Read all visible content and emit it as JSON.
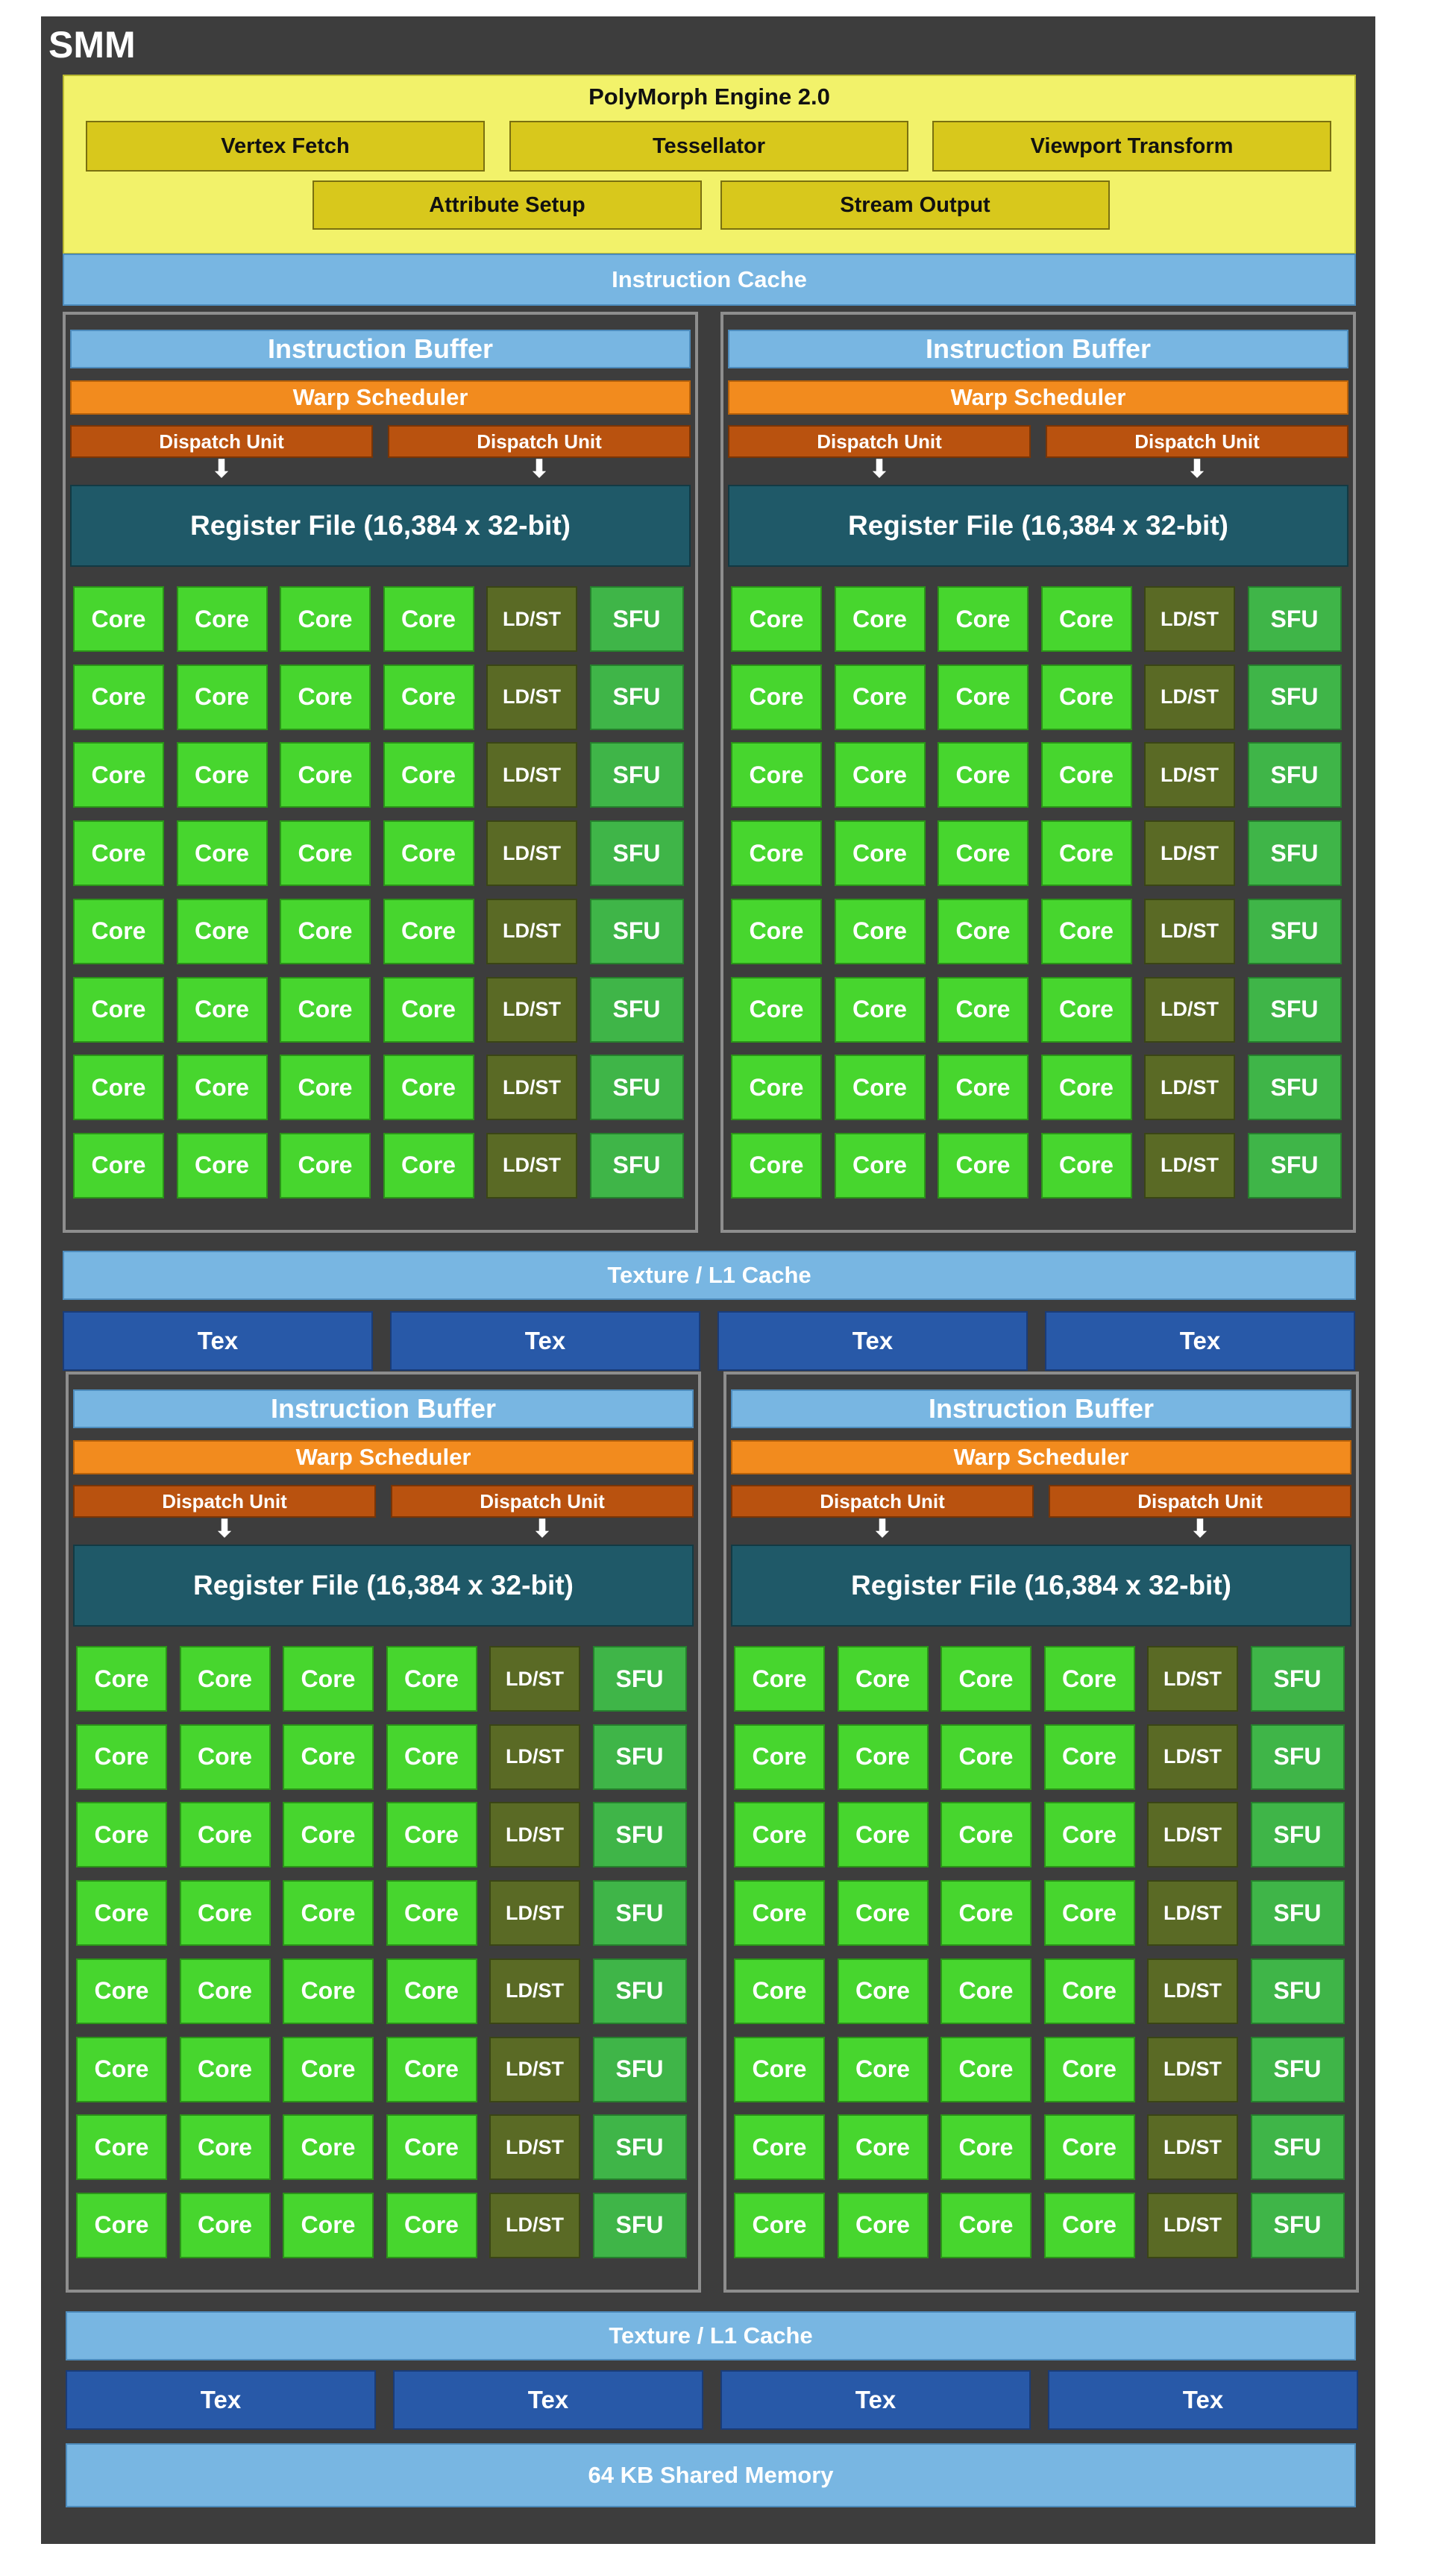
{
  "title": "SMM",
  "polymorph": {
    "title": "PolyMorph Engine 2.0",
    "units_row1": [
      "Vertex Fetch",
      "Tessellator",
      "Viewport Transform"
    ],
    "units_row2": [
      "Attribute Setup",
      "Stream Output"
    ]
  },
  "instruction_cache": "Instruction Cache",
  "processing_block": {
    "instruction_buffer": "Instruction Buffer",
    "warp_scheduler": "Warp Scheduler",
    "dispatch_unit": "Dispatch Unit",
    "register_file": "Register File (16,384 x 32-bit)",
    "unit_columns": [
      "Core",
      "Core",
      "Core",
      "Core",
      "LD/ST",
      "SFU"
    ],
    "rows": 8
  },
  "texture_l1_cache": "Texture / L1 Cache",
  "tex_unit": "Tex",
  "shared_memory": "64 KB Shared Memory",
  "colors": {
    "background": "#3d3d3d",
    "polymorph": "#f2f26a",
    "polymorph_unit": "#d8c81c",
    "cache": "#78b6e2",
    "warp_scheduler": "#f28b1e",
    "dispatch_unit": "#b9520f",
    "register_file": "#1f5968",
    "core": "#47d62e",
    "ldst": "#5a6a25",
    "sfu": "#3fb548",
    "tex": "#2859a8"
  }
}
